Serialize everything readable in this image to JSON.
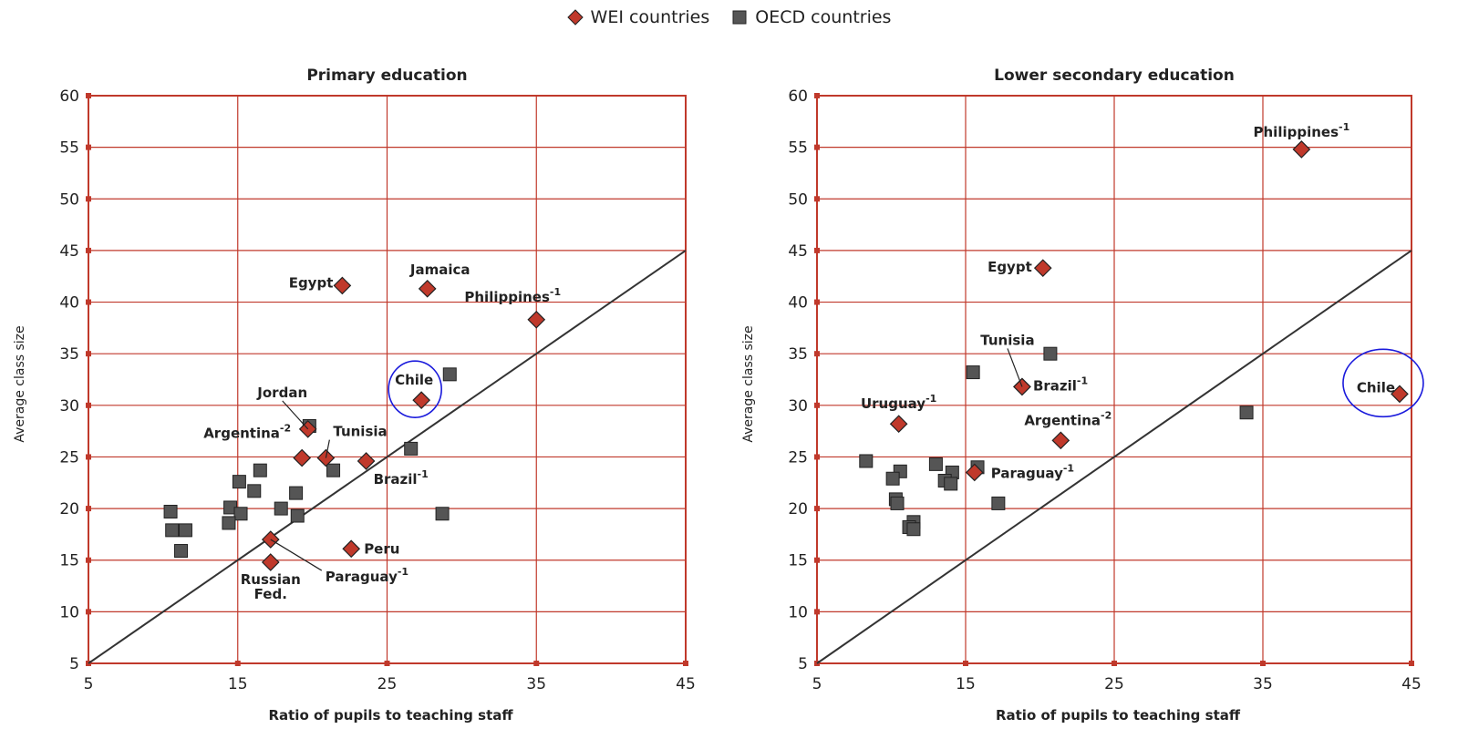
{
  "legend": {
    "wei": "WEI countries",
    "oecd": "OECD countries",
    "wei_color": "#c0392b",
    "oecd_color": "#555555"
  },
  "colors": {
    "grid": "#c0392b",
    "frame": "#c0392b",
    "diagonal": "#333333",
    "wei_marker": "#c0392b",
    "oecd_marker": "#555555",
    "highlight_circle": "#1a1adc"
  },
  "chart_data": [
    {
      "type": "scatter",
      "title": "Primary education",
      "xlabel": "Ratio of pupils to teaching staff",
      "ylabel": "Average class size",
      "xlim": [
        5,
        45
      ],
      "ylim": [
        5,
        60
      ],
      "x_ticks": [
        5,
        15,
        25,
        35,
        45
      ],
      "y_ticks": [
        5,
        10,
        15,
        20,
        25,
        30,
        35,
        40,
        45,
        50,
        55,
        60
      ],
      "grid": true,
      "reference_line": [
        [
          5,
          5
        ],
        [
          45,
          45
        ]
      ],
      "highlight": "Chile",
      "series": [
        {
          "name": "WEI countries",
          "marker": "diamond",
          "points": [
            {
              "label": "Egypt",
              "x": 22.0,
              "y": 41.6
            },
            {
              "label": "Jamaica",
              "x": 27.7,
              "y": 41.3
            },
            {
              "label": "Philippines-1",
              "x": 35.0,
              "y": 38.3
            },
            {
              "label": "Chile",
              "x": 27.3,
              "y": 30.5
            },
            {
              "label": "Jordan",
              "x": 19.7,
              "y": 27.7
            },
            {
              "label": "Argentina-2",
              "x": 19.3,
              "y": 24.9
            },
            {
              "label": "Tunisia",
              "x": 20.9,
              "y": 24.9
            },
            {
              "label": "Brazil-1",
              "x": 23.6,
              "y": 24.6
            },
            {
              "label": "Paraguay-1",
              "x": 17.2,
              "y": 17.0
            },
            {
              "label": "Peru",
              "x": 22.6,
              "y": 16.1
            },
            {
              "label": "Russian Fed.",
              "x": 17.2,
              "y": 14.8
            }
          ]
        },
        {
          "name": "OECD countries",
          "marker": "square",
          "points": [
            {
              "x": 29.2,
              "y": 33.0
            },
            {
              "x": 19.8,
              "y": 28.0
            },
            {
              "x": 26.6,
              "y": 25.8
            },
            {
              "x": 21.4,
              "y": 23.7
            },
            {
              "x": 16.5,
              "y": 23.7
            },
            {
              "x": 15.1,
              "y": 22.6
            },
            {
              "x": 16.1,
              "y": 21.7
            },
            {
              "x": 18.9,
              "y": 21.5
            },
            {
              "x": 14.5,
              "y": 20.1
            },
            {
              "x": 17.9,
              "y": 20.0
            },
            {
              "x": 10.5,
              "y": 19.7
            },
            {
              "x": 15.2,
              "y": 19.5
            },
            {
              "x": 28.7,
              "y": 19.5
            },
            {
              "x": 19.0,
              "y": 19.3
            },
            {
              "x": 14.4,
              "y": 18.6
            },
            {
              "x": 10.6,
              "y": 17.9
            },
            {
              "x": 11.5,
              "y": 17.9
            },
            {
              "x": 11.2,
              "y": 15.9
            }
          ]
        }
      ]
    },
    {
      "type": "scatter",
      "title": "Lower secondary education",
      "xlabel": "Ratio of pupils to teaching staff",
      "ylabel": "Average class size",
      "xlim": [
        5,
        45
      ],
      "ylim": [
        5,
        60
      ],
      "x_ticks": [
        5,
        15,
        25,
        35,
        45
      ],
      "y_ticks": [
        5,
        10,
        15,
        20,
        25,
        30,
        35,
        40,
        45,
        50,
        55,
        60
      ],
      "grid": true,
      "reference_line": [
        [
          5,
          5
        ],
        [
          45,
          45
        ]
      ],
      "highlight": "Chile",
      "series": [
        {
          "name": "WEI countries",
          "marker": "diamond",
          "points": [
            {
              "label": "Philippines-1",
              "x": 37.6,
              "y": 54.8
            },
            {
              "label": "Egypt",
              "x": 20.2,
              "y": 43.3
            },
            {
              "label": "Chile",
              "x": 44.2,
              "y": 31.1
            },
            {
              "label": "Tunisia",
              "x": 18.8,
              "y": 31.8
            },
            {
              "label": "Brazil-1",
              "x": 18.8,
              "y": 31.8
            },
            {
              "label": "Uruguay-1",
              "x": 10.5,
              "y": 28.2
            },
            {
              "label": "Argentina-2",
              "x": 21.4,
              "y": 26.6
            },
            {
              "label": "Paraguay-1",
              "x": 15.6,
              "y": 23.5
            }
          ]
        },
        {
          "name": "OECD countries",
          "marker": "square",
          "points": [
            {
              "x": 20.7,
              "y": 35.0
            },
            {
              "x": 15.5,
              "y": 33.2
            },
            {
              "x": 33.9,
              "y": 29.3
            },
            {
              "x": 8.3,
              "y": 24.6
            },
            {
              "x": 13.0,
              "y": 24.3
            },
            {
              "x": 15.8,
              "y": 24.0
            },
            {
              "x": 10.6,
              "y": 23.6
            },
            {
              "x": 14.1,
              "y": 23.5
            },
            {
              "x": 10.1,
              "y": 22.9
            },
            {
              "x": 13.6,
              "y": 22.7
            },
            {
              "x": 14.0,
              "y": 22.4
            },
            {
              "x": 10.3,
              "y": 20.9
            },
            {
              "x": 10.4,
              "y": 20.5
            },
            {
              "x": 17.2,
              "y": 20.5
            },
            {
              "x": 11.5,
              "y": 18.7
            },
            {
              "x": 11.2,
              "y": 18.2
            },
            {
              "x": 11.5,
              "y": 18.0
            }
          ]
        }
      ]
    }
  ]
}
